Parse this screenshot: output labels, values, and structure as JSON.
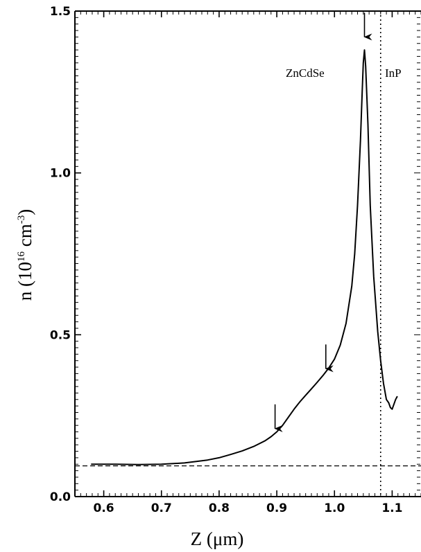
{
  "chart_data": {
    "type": "line",
    "title": "",
    "xlabel": "Z (μm)",
    "ylabel_main": "n (10",
    "ylabel_exp1": "16",
    "ylabel_mid": " cm",
    "ylabel_exp2": "-3",
    "ylabel_end": ")",
    "xlim": [
      0.55,
      1.15
    ],
    "ylim": [
      0.0,
      1.5
    ],
    "x_ticks": [
      0.6,
      0.7,
      0.8,
      0.9,
      1.0,
      1.1
    ],
    "x_tick_labels": [
      "0.6",
      "0.7",
      "0.8",
      "0.9",
      "1.0",
      "1.1"
    ],
    "y_ticks": [
      0.0,
      0.5,
      1.0,
      1.5
    ],
    "y_tick_labels": [
      "0.0",
      "0.5",
      "1.0",
      "1.5"
    ],
    "grid": false,
    "legend": "none",
    "series": [
      {
        "x": [
          0.578,
          0.62,
          0.66,
          0.7,
          0.74,
          0.78,
          0.8,
          0.82,
          0.84,
          0.86,
          0.88,
          0.89,
          0.9,
          0.91,
          0.92,
          0.93,
          0.94,
          0.95,
          0.96,
          0.97,
          0.98,
          0.99,
          1.0,
          1.01,
          1.02,
          1.03,
          1.035,
          1.04,
          1.045,
          1.048,
          1.05,
          1.052,
          1.054,
          1.058,
          1.062,
          1.068,
          1.075,
          1.08,
          1.085,
          1.09,
          1.094,
          1.097,
          1.1,
          1.103,
          1.106,
          1.109
        ],
        "y": [
          0.1,
          0.1,
          0.099,
          0.1,
          0.104,
          0.113,
          0.12,
          0.13,
          0.141,
          0.155,
          0.173,
          0.185,
          0.2,
          0.22,
          0.245,
          0.27,
          0.293,
          0.313,
          0.333,
          0.353,
          0.374,
          0.397,
          0.425,
          0.468,
          0.535,
          0.65,
          0.75,
          0.9,
          1.1,
          1.25,
          1.34,
          1.38,
          1.33,
          1.15,
          0.9,
          0.68,
          0.51,
          0.42,
          0.35,
          0.3,
          0.29,
          0.275,
          0.27,
          0.285,
          0.3,
          0.31
        ]
      }
    ],
    "reference_lines": [
      {
        "orientation": "horizontal",
        "style": "dashed",
        "y": 0.095
      },
      {
        "orientation": "vertical",
        "style": "dotted",
        "x": 1.08
      }
    ],
    "arrows": [
      {
        "x": 1.052,
        "y_top": 1.495,
        "y_tip": 1.42
      },
      {
        "x": 0.985,
        "y_top": 0.47,
        "y_tip": 0.395
      },
      {
        "x": 0.897,
        "y_top": 0.285,
        "y_tip": 0.21
      }
    ],
    "annotations": [
      {
        "text": "ZnCdSe",
        "x": 0.965,
        "y": 1.3
      },
      {
        "text": "InP",
        "x": 1.098,
        "y": 1.3
      }
    ]
  }
}
